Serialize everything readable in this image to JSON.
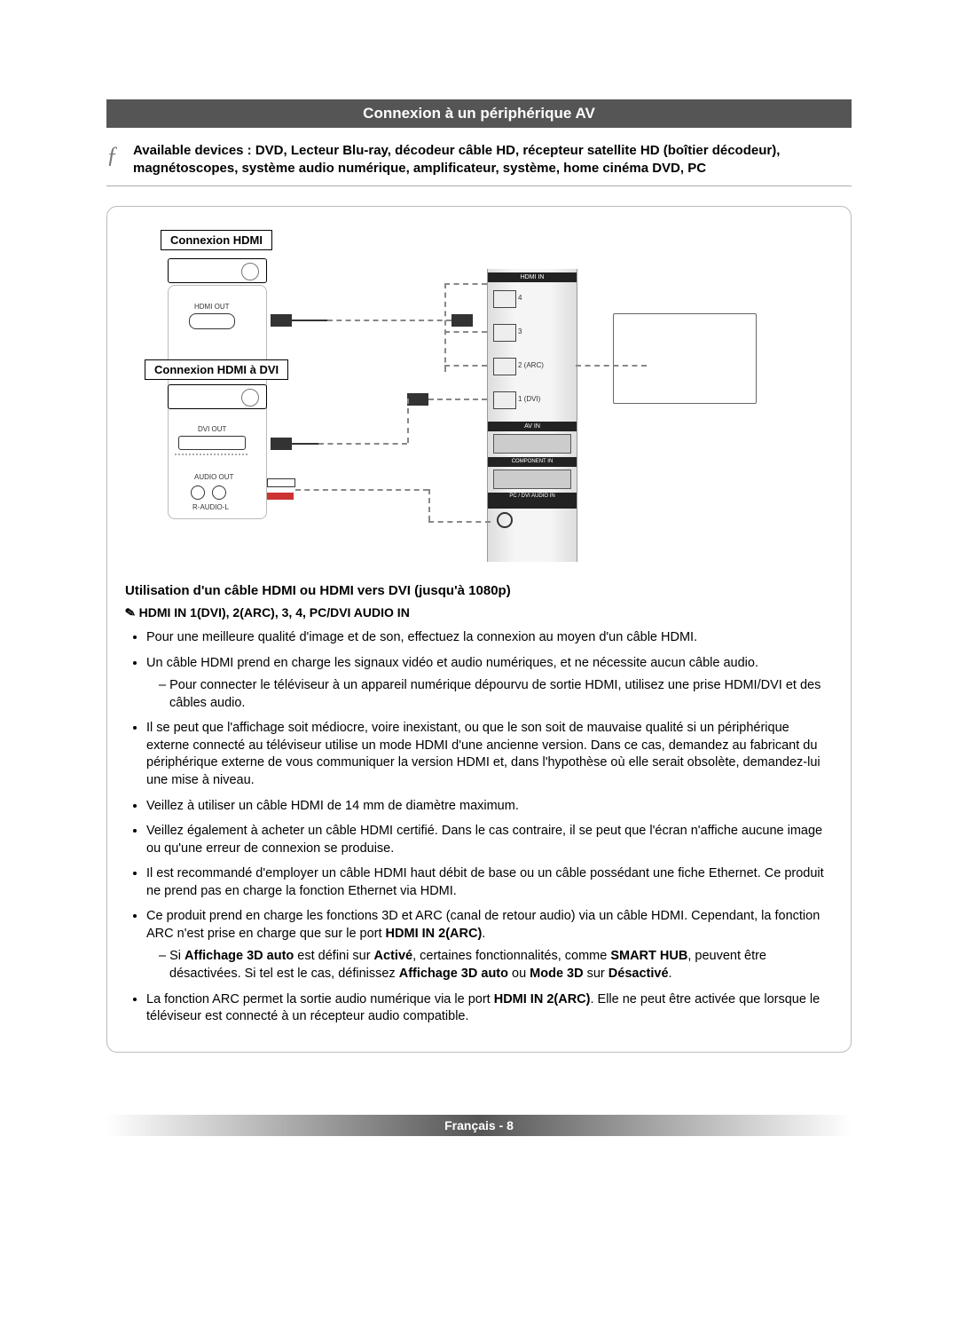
{
  "header": {
    "title": "Connexion à un périphérique AV"
  },
  "intro": {
    "mark": "ƒ",
    "text": "Available devices : DVD, Lecteur Blu-ray, décodeur câble HD, récepteur satellite HD (boîtier décodeur), magnétoscopes, système audio numérique, amplificateur, système, home cinéma DVD, PC"
  },
  "diagram": {
    "label_hdmi": "Connexion HDMI",
    "label_dvi": "Connexion HDMI à DVI",
    "hdmi_out": "HDMI OUT",
    "dvi_out": "DVI OUT",
    "audio_out": "AUDIO OUT",
    "r_audio_l": "R-AUDIO-L",
    "panel": {
      "hdmi_in": "HDMI IN",
      "p4": "4",
      "p3": "3",
      "p2": "2 (ARC)",
      "p1": "1 (DVI)",
      "av_in": "AV IN",
      "component_in": "COMPONENT IN",
      "pc_dvi": "PC / DVI AUDIO IN"
    }
  },
  "section2_title": "Utilisation d'un câble HDMI ou HDMI vers DVI (jusqu'à 1080p)",
  "note_sym": "✎",
  "note_line_a": "HDMI IN 1(DVI), 2(ARC), 3, 4, PC/DVI AUDIO IN",
  "bullets": [
    {
      "text": "Pour une meilleure qualité d'image et de son, effectuez la connexion au moyen d'un câble HDMI."
    },
    {
      "text": "Un câble HDMI prend en charge les signaux vidéo et audio numériques, et ne nécessite aucun câble audio.",
      "sub": [
        "Pour connecter le téléviseur à un appareil numérique dépourvu de sortie HDMI, utilisez une prise HDMI/DVI et des câbles audio."
      ]
    },
    {
      "text": "Il se peut que l'affichage soit médiocre, voire inexistant, ou que le son soit de mauvaise qualité si un périphérique externe connecté au téléviseur utilise un mode HDMI d'une ancienne version. Dans ce cas, demandez au fabricant du périphérique externe de vous communiquer la version HDMI et, dans l'hypothèse où elle serait obsolète, demandez-lui une mise à niveau."
    },
    {
      "text": "Veillez à utiliser un câble HDMI de 14 mm de diamètre maximum."
    },
    {
      "text": "Veillez également à acheter un câble HDMI certifié. Dans le cas contraire, il se peut que l'écran n'affiche aucune image ou qu'une erreur de connexion se produise."
    },
    {
      "text": "Il est recommandé d'employer un câble HDMI haut débit de base ou un câble possédant une fiche Ethernet. Ce produit ne prend pas en charge la fonction Ethernet via HDMI."
    },
    {
      "parts": [
        {
          "t": "Ce produit prend en charge les fonctions 3D et ARC (canal de retour audio) via un câble HDMI. Cependant, la fonction ARC n'est prise en charge que sur le port "
        },
        {
          "t": "HDMI IN 2(ARC)",
          "b": true
        },
        {
          "t": "."
        }
      ],
      "sub_parts": [
        [
          {
            "t": "Si "
          },
          {
            "t": "Affichage 3D auto",
            "b": true
          },
          {
            "t": " est défini sur "
          },
          {
            "t": "Activé",
            "b": true
          },
          {
            "t": ", certaines fonctionnalités, comme "
          },
          {
            "t": "SMART HUB",
            "b": true
          },
          {
            "t": ", peuvent être désactivées. Si tel est le cas, définissez "
          },
          {
            "t": "Affichage 3D auto",
            "b": true
          },
          {
            "t": " ou "
          },
          {
            "t": "Mode 3D",
            "b": true
          },
          {
            "t": " sur "
          },
          {
            "t": "Désactivé",
            "b": true
          },
          {
            "t": "."
          }
        ]
      ]
    },
    {
      "parts": [
        {
          "t": "La fonction ARC permet la sortie audio numérique via le port "
        },
        {
          "t": "HDMI IN 2(ARC)",
          "b": true
        },
        {
          "t": ". Elle ne peut être activée que lorsque le téléviseur est connecté à un récepteur audio compatible."
        }
      ]
    }
  ],
  "footer": {
    "lang": "Français",
    "page": "8"
  },
  "colors": {
    "bar_bg": "#555555",
    "bar_fg": "#ffffff",
    "box_border": "#bbbbbb",
    "wire": "#333333",
    "wire_dash": "#888888"
  }
}
